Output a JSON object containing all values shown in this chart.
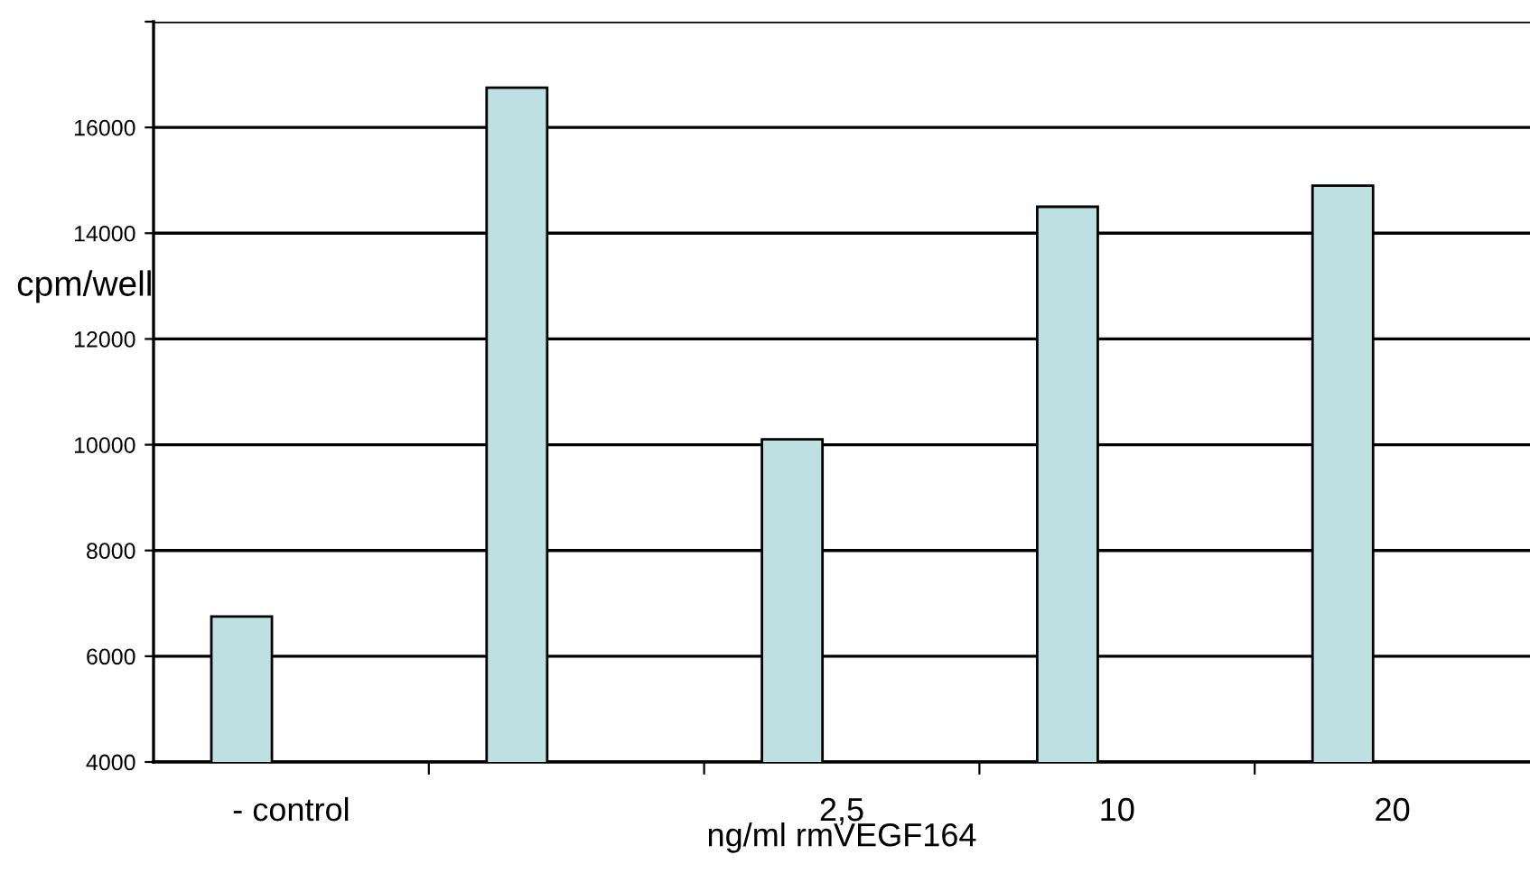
{
  "chart_data": {
    "type": "bar",
    "xlabel": "ng/ml rmVEGF164",
    "ylabel": "cpm/well",
    "categories": [
      "- control",
      null,
      "2,5",
      "10",
      "20"
    ],
    "values": [
      6750,
      16750,
      10100,
      14500,
      14900
    ],
    "color": "#bde0e3",
    "ylim": [
      4000,
      18000
    ],
    "yticks": [
      4000,
      6000,
      8000,
      10000,
      12000,
      14000,
      16000,
      {
        "value": 18000,
        "label": null
      }
    ],
    "grid": "y"
  }
}
